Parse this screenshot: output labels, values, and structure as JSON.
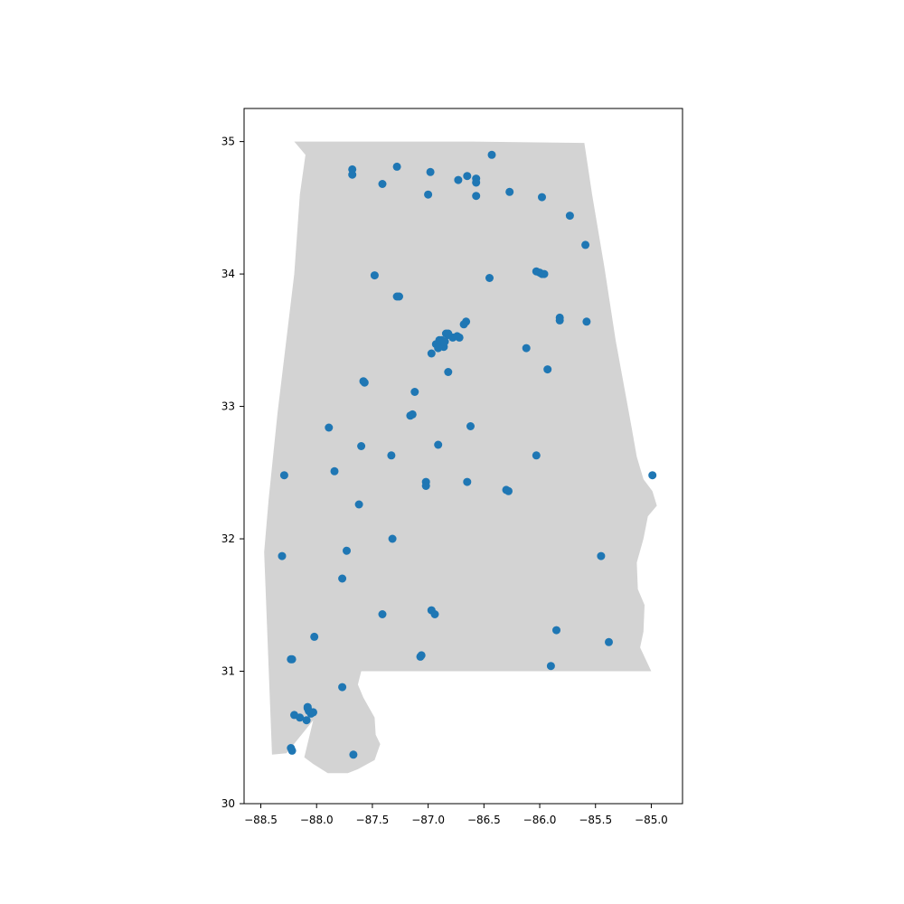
{
  "colors": {
    "background": "#ffffff",
    "land_fill": "#d3d3d3",
    "marker": "#1f77b4",
    "axis": "#000000"
  },
  "chart_data": {
    "type": "scatter",
    "title": "",
    "xlabel": "",
    "ylabel": "",
    "xlim": [
      -88.65,
      -84.72
    ],
    "ylim": [
      30.0,
      35.25
    ],
    "grid": false,
    "legend": "none",
    "xticks": [
      -88.5,
      -88.0,
      -87.5,
      -87.0,
      -86.5,
      -86.0,
      -85.5,
      -85.0
    ],
    "xtick_labels": [
      "−88.5",
      "−88.0",
      "−87.5",
      "−87.0",
      "−86.5",
      "−86.0",
      "−85.5",
      "−85.0"
    ],
    "yticks": [
      30,
      31,
      32,
      33,
      34,
      35
    ],
    "ytick_labels": [
      "30",
      "31",
      "32",
      "33",
      "34",
      "35"
    ],
    "basemap": {
      "name": "Alabama",
      "outline": [
        [
          -88.2,
          35.0
        ],
        [
          -86.6,
          35.0
        ],
        [
          -85.6,
          34.99
        ],
        [
          -85.53,
          34.6
        ],
        [
          -85.42,
          34.05
        ],
        [
          -85.32,
          33.5
        ],
        [
          -85.18,
          32.86
        ],
        [
          -85.13,
          32.62
        ],
        [
          -85.07,
          32.45
        ],
        [
          -84.99,
          32.36
        ],
        [
          -84.95,
          32.25
        ],
        [
          -85.03,
          32.17
        ],
        [
          -85.07,
          32.0
        ],
        [
          -85.13,
          31.82
        ],
        [
          -85.12,
          31.62
        ],
        [
          -85.06,
          31.5
        ],
        [
          -85.07,
          31.3
        ],
        [
          -85.1,
          31.18
        ],
        [
          -85.0,
          31.0
        ],
        [
          -87.6,
          31.0
        ],
        [
          -87.63,
          30.9
        ],
        [
          -87.58,
          30.8
        ],
        [
          -87.48,
          30.65
        ],
        [
          -87.47,
          30.52
        ],
        [
          -87.43,
          30.45
        ],
        [
          -87.48,
          30.33
        ],
        [
          -87.63,
          30.26
        ],
        [
          -87.72,
          30.23
        ],
        [
          -87.9,
          30.23
        ],
        [
          -88.03,
          30.3
        ],
        [
          -88.11,
          30.35
        ],
        [
          -88.03,
          30.63
        ],
        [
          -88.27,
          30.38
        ],
        [
          -88.4,
          30.37
        ],
        [
          -88.47,
          31.9
        ],
        [
          -88.43,
          32.3
        ],
        [
          -88.35,
          32.95
        ],
        [
          -88.2,
          34.0
        ],
        [
          -88.15,
          34.6
        ],
        [
          -88.1,
          34.9
        ],
        [
          -88.2,
          35.0
        ]
      ]
    },
    "series": [
      {
        "x": [
          -86.43,
          -87.68,
          -87.68,
          -87.28,
          -86.98,
          -86.65,
          -86.73,
          -86.57,
          -86.57,
          -87.41,
          -86.27,
          -87.0,
          -86.57,
          -85.98,
          -85.73,
          -85.59,
          -86.03,
          -86.0,
          -85.98,
          -85.96,
          -87.48,
          -87.28,
          -87.26,
          -86.45,
          -85.82,
          -85.82,
          -85.58,
          -86.66,
          -86.68,
          -86.84,
          -86.82,
          -86.78,
          -86.74,
          -86.72,
          -86.9,
          -86.88,
          -86.93,
          -86.89,
          -86.86,
          -86.91,
          -86.85,
          -86.97,
          -86.82,
          -86.12,
          -85.93,
          -86.82,
          -87.58,
          -87.57,
          -87.12,
          -87.14,
          -87.16,
          -87.89,
          -86.62,
          -87.6,
          -86.91,
          -87.33,
          -86.03,
          -88.29,
          -87.84,
          -87.02,
          -87.02,
          -86.65,
          -86.3,
          -86.28,
          -84.99,
          -87.62,
          -87.32,
          -87.73,
          -88.31,
          -85.45,
          -87.77,
          -86.97,
          -86.94,
          -87.41,
          -85.85,
          -85.38,
          -87.06,
          -87.07,
          -88.02,
          -88.23,
          -88.22,
          -85.9,
          -87.77,
          -88.2,
          -88.15,
          -88.08,
          -88.07,
          -88.05,
          -88.09,
          -88.03,
          -88.08,
          -87.67,
          -88.23,
          -88.22
        ],
        "y": [
          34.9,
          34.79,
          34.75,
          34.81,
          34.77,
          34.74,
          34.71,
          34.72,
          34.69,
          34.68,
          34.62,
          34.6,
          34.59,
          34.58,
          34.44,
          34.22,
          34.02,
          34.01,
          34.0,
          34.0,
          33.99,
          33.83,
          33.83,
          33.97,
          33.67,
          33.65,
          33.64,
          33.64,
          33.62,
          33.55,
          33.54,
          33.52,
          33.53,
          33.52,
          33.5,
          33.5,
          33.47,
          33.48,
          33.45,
          33.44,
          33.49,
          33.4,
          33.26,
          33.44,
          33.28,
          33.55,
          33.19,
          33.18,
          33.11,
          32.94,
          32.93,
          32.84,
          32.85,
          32.7,
          32.71,
          32.63,
          32.63,
          32.48,
          32.51,
          32.43,
          32.4,
          32.43,
          32.37,
          32.36,
          32.48,
          32.26,
          32.0,
          31.91,
          31.87,
          31.87,
          31.7,
          31.46,
          31.43,
          31.43,
          31.31,
          31.22,
          31.12,
          31.11,
          31.26,
          31.09,
          31.09,
          31.04,
          30.88,
          30.67,
          30.65,
          30.72,
          30.7,
          30.68,
          30.63,
          30.69,
          30.73,
          30.37,
          30.42,
          30.4
        ]
      }
    ]
  }
}
